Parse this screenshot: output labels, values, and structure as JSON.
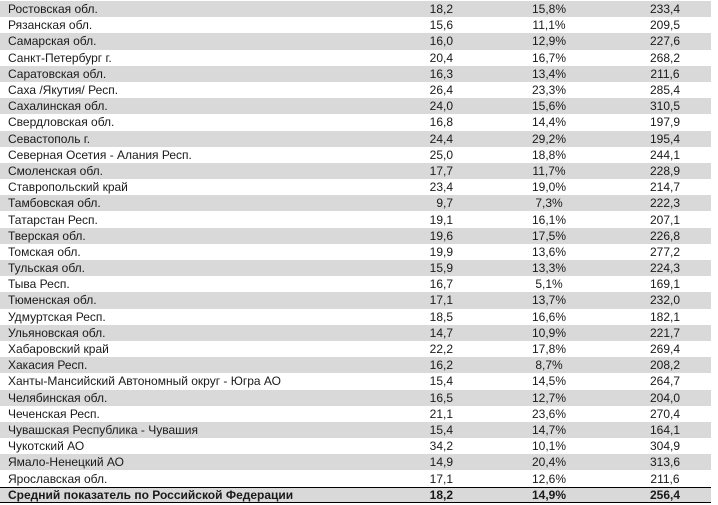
{
  "colors": {
    "row_stripe": "#d9d9d9",
    "text": "#1a1a1a",
    "total_border": "#000000"
  },
  "table": {
    "columns": [
      "region",
      "value1",
      "percent",
      "value2"
    ],
    "rows": [
      [
        "Ростовская обл.",
        "18,2",
        "15,8%",
        "233,4"
      ],
      [
        "Рязанская обл.",
        "15,6",
        "11,1%",
        "209,5"
      ],
      [
        "Самарская обл.",
        "16,0",
        "12,9%",
        "227,6"
      ],
      [
        "Санкт-Петербург г.",
        "20,4",
        "16,7%",
        "268,2"
      ],
      [
        "Саратовская обл.",
        "16,3",
        "13,4%",
        "211,6"
      ],
      [
        "Саха /Якутия/ Респ.",
        "26,4",
        "23,3%",
        "285,4"
      ],
      [
        "Сахалинская обл.",
        "24,0",
        "15,6%",
        "310,5"
      ],
      [
        "Свердловская обл.",
        "16,8",
        "14,4%",
        "197,9"
      ],
      [
        "Севастополь г.",
        "24,4",
        "29,2%",
        "195,4"
      ],
      [
        "Северная Осетия - Алания Респ.",
        "25,0",
        "18,8%",
        "244,1"
      ],
      [
        "Смоленская обл.",
        "17,7",
        "11,7%",
        "228,9"
      ],
      [
        "Ставропольский край",
        "23,4",
        "19,0%",
        "214,7"
      ],
      [
        "Тамбовская обл.",
        "9,7",
        "7,3%",
        "222,3"
      ],
      [
        "Татарстан Респ.",
        "19,1",
        "16,1%",
        "207,1"
      ],
      [
        "Тверская обл.",
        "19,6",
        "17,5%",
        "226,8"
      ],
      [
        "Томская обл.",
        "19,9",
        "13,6%",
        "277,2"
      ],
      [
        "Тульская обл.",
        "15,9",
        "13,3%",
        "224,3"
      ],
      [
        "Тыва Респ.",
        "16,7",
        "5,1%",
        "169,1"
      ],
      [
        "Тюменская обл.",
        "17,1",
        "13,7%",
        "232,0"
      ],
      [
        "Удмуртская Респ.",
        "18,5",
        "16,6%",
        "182,1"
      ],
      [
        "Ульяновская обл.",
        "14,7",
        "10,9%",
        "221,7"
      ],
      [
        "Хабаровский край",
        "22,2",
        "17,8%",
        "269,4"
      ],
      [
        "Хакасия Респ.",
        "16,2",
        "8,7%",
        "208,2"
      ],
      [
        "Ханты-Мансийский Автономный округ - Югра АО",
        "15,4",
        "14,5%",
        "264,7"
      ],
      [
        "Челябинская обл.",
        "16,5",
        "12,7%",
        "204,0"
      ],
      [
        "Чеченская Респ.",
        "21,1",
        "23,6%",
        "270,4"
      ],
      [
        "Чувашская Республика - Чувашия",
        "15,4",
        "14,7%",
        "164,1"
      ],
      [
        "Чукотский АО",
        "34,2",
        "10,1%",
        "304,9"
      ],
      [
        "Ямало-Ненецкий АО",
        "14,9",
        "20,4%",
        "313,6"
      ],
      [
        "Ярославская обл.",
        "17,1",
        "12,6%",
        "211,6"
      ]
    ],
    "total_row": [
      "Средний показатель по Российской Федерации",
      "18,2",
      "14,9%",
      "256,4"
    ]
  }
}
